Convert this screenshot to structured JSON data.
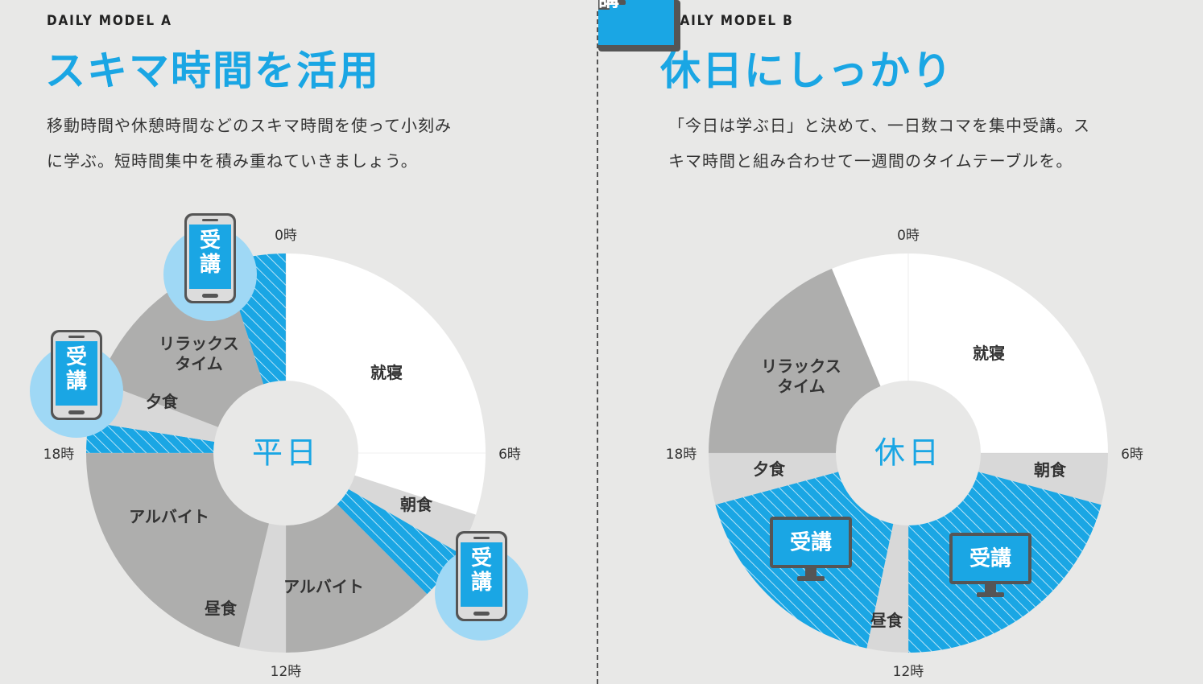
{
  "panels": [
    {
      "model_label": "DAILY MODEL A",
      "title": "スキマ時間を活用",
      "description_lines": [
        "移動時間や休憩時間などのスキマ時間を使って小刻み",
        "に学ぶ。短時間集中を積み重ねていきましょう。"
      ]
    },
    {
      "model_label": "DAILY MODEL B",
      "title": "休日にしっかり",
      "description_lines": [
        "「今日は学ぶ日」と決めて、一日数コマを集中受講。ス",
        "キマ時間と組み合わせて一週間のタイムテーブルを。"
      ]
    }
  ],
  "colors": {
    "accent": "#1aa6e4",
    "sleep": "#ffffff",
    "meal": "#d8d8d8",
    "activity": "#aeaead",
    "study": "#1aa6e4",
    "background": "#e8e8e7",
    "badge_bubble": "#9fd8f5"
  },
  "badge_text": "受講",
  "chart_data": [
    {
      "type": "pie",
      "center_label": "平日",
      "hour_labels": [
        "0時",
        "6時",
        "12時",
        "18時"
      ],
      "segments": [
        {
          "label": "就寝",
          "start_hour": 0,
          "end_hour": 7.2,
          "category": "sleep"
        },
        {
          "label": "朝食",
          "start_hour": 7.2,
          "end_hour": 8.0,
          "category": "meal"
        },
        {
          "label": "受講",
          "start_hour": 8.0,
          "end_hour": 9.0,
          "category": "study",
          "shown_as_badge": true
        },
        {
          "label": "アルバイト",
          "start_hour": 9.0,
          "end_hour": 12.0,
          "category": "activity"
        },
        {
          "label": "昼食",
          "start_hour": 12.0,
          "end_hour": 12.9,
          "category": "meal"
        },
        {
          "label": "アルバイト",
          "start_hour": 12.9,
          "end_hour": 18.0,
          "category": "activity"
        },
        {
          "label": "受講",
          "start_hour": 18.0,
          "end_hour": 18.6,
          "category": "study",
          "shown_as_badge": true
        },
        {
          "label": "夕食",
          "start_hour": 18.6,
          "end_hour": 19.4,
          "category": "meal"
        },
        {
          "label": "リラックス\nタイム",
          "start_hour": 19.4,
          "end_hour": 22.8,
          "category": "activity"
        },
        {
          "label": "受講",
          "start_hour": 22.8,
          "end_hour": 24.0,
          "category": "study",
          "shown_as_badge": true
        }
      ]
    },
    {
      "type": "pie",
      "center_label": "休日",
      "hour_labels": [
        "0時",
        "6時",
        "12時",
        "18時"
      ],
      "segments": [
        {
          "label": "就寝",
          "start_hour": 0,
          "end_hour": 6.0,
          "category": "sleep"
        },
        {
          "label": "朝食",
          "start_hour": 6.0,
          "end_hour": 7.0,
          "category": "meal"
        },
        {
          "label": "受講",
          "start_hour": 7.0,
          "end_hour": 12.0,
          "category": "study",
          "shown_as_badge": true
        },
        {
          "label": "昼食",
          "start_hour": 12.0,
          "end_hour": 12.8,
          "category": "meal"
        },
        {
          "label": "受講",
          "start_hour": 12.8,
          "end_hour": 17.0,
          "category": "study",
          "shown_as_badge": true
        },
        {
          "label": "夕食",
          "start_hour": 17.0,
          "end_hour": 18.0,
          "category": "meal"
        },
        {
          "label": "リラックス\nタイム",
          "start_hour": 18.0,
          "end_hour": 22.5,
          "category": "activity"
        },
        {
          "label": "就寝",
          "start_hour": 22.5,
          "end_hour": 24.0,
          "category": "sleep",
          "hide_label": true
        }
      ]
    }
  ]
}
